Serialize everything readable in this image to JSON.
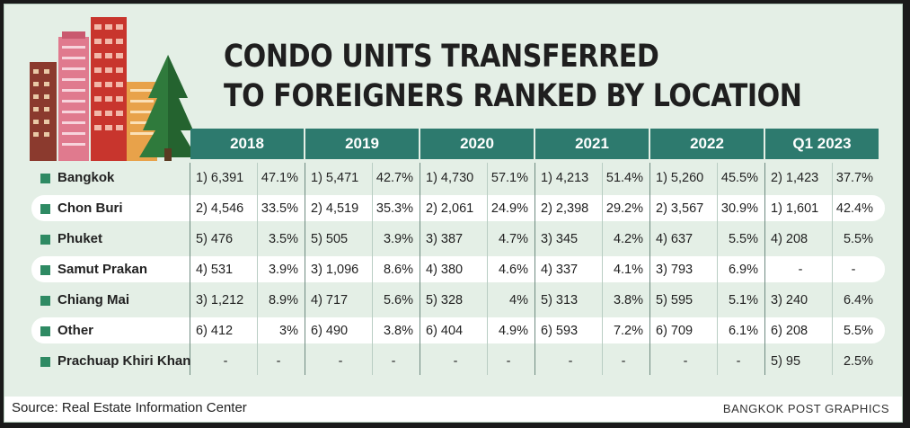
{
  "title_line1": "CONDO UNITS TRANSFERRED",
  "title_line2": "TO FOREIGNERS RANKED BY LOCATION",
  "source": "Source: Real Estate Information Center",
  "credit": "BANGKOK POST GRAPHICS",
  "colors": {
    "header": "#2d7a6e",
    "background": "#e4efe6",
    "bullet": "#2e8a63"
  },
  "chart_data": {
    "type": "table",
    "columns": [
      "2018",
      "2019",
      "2020",
      "2021",
      "2022",
      "Q1 2023"
    ],
    "rows": [
      {
        "name": "Bangkok",
        "cells": [
          [
            "1) 6,391",
            "47.1%"
          ],
          [
            "1) 5,471",
            "42.7%"
          ],
          [
            "1) 4,730",
            "57.1%"
          ],
          [
            "1) 4,213",
            "51.4%"
          ],
          [
            "1) 5,260",
            "45.5%"
          ],
          [
            "2) 1,423",
            "37.7%"
          ]
        ]
      },
      {
        "name": "Chon Buri",
        "cells": [
          [
            "2) 4,546",
            "33.5%"
          ],
          [
            "2) 4,519",
            "35.3%"
          ],
          [
            "2) 2,061",
            "24.9%"
          ],
          [
            "2) 2,398",
            "29.2%"
          ],
          [
            "2) 3,567",
            "30.9%"
          ],
          [
            "1) 1,601",
            "42.4%"
          ]
        ]
      },
      {
        "name": "Phuket",
        "cells": [
          [
            "5) 476",
            "3.5%"
          ],
          [
            "5) 505",
            "3.9%"
          ],
          [
            "3) 387",
            "4.7%"
          ],
          [
            "3) 345",
            "4.2%"
          ],
          [
            "4) 637",
            "5.5%"
          ],
          [
            "4) 208",
            "5.5%"
          ]
        ]
      },
      {
        "name": "Samut Prakan",
        "cells": [
          [
            "4) 531",
            "3.9%"
          ],
          [
            "3) 1,096",
            "8.6%"
          ],
          [
            "4) 380",
            "4.6%"
          ],
          [
            "4) 337",
            "4.1%"
          ],
          [
            "3) 793",
            "6.9%"
          ],
          [
            "-",
            "-"
          ]
        ]
      },
      {
        "name": "Chiang Mai",
        "cells": [
          [
            "3) 1,212",
            "8.9%"
          ],
          [
            "4) 717",
            "5.6%"
          ],
          [
            "5) 328",
            "4%"
          ],
          [
            "5) 313",
            "3.8%"
          ],
          [
            "5) 595",
            "5.1%"
          ],
          [
            "3) 240",
            "6.4%"
          ]
        ]
      },
      {
        "name": "Other",
        "cells": [
          [
            "6) 412",
            "3%"
          ],
          [
            "6) 490",
            "3.8%"
          ],
          [
            "6) 404",
            "4.9%"
          ],
          [
            "6) 593",
            "7.2%"
          ],
          [
            "6) 709",
            "6.1%"
          ],
          [
            "6) 208",
            "5.5%"
          ]
        ]
      },
      {
        "name": "Prachuap Khiri Khan",
        "cells": [
          [
            "-",
            "-"
          ],
          [
            "-",
            "-"
          ],
          [
            "-",
            "-"
          ],
          [
            "-",
            "-"
          ],
          [
            "-",
            "-"
          ],
          [
            "5) 95",
            "2.5%"
          ]
        ]
      }
    ]
  }
}
